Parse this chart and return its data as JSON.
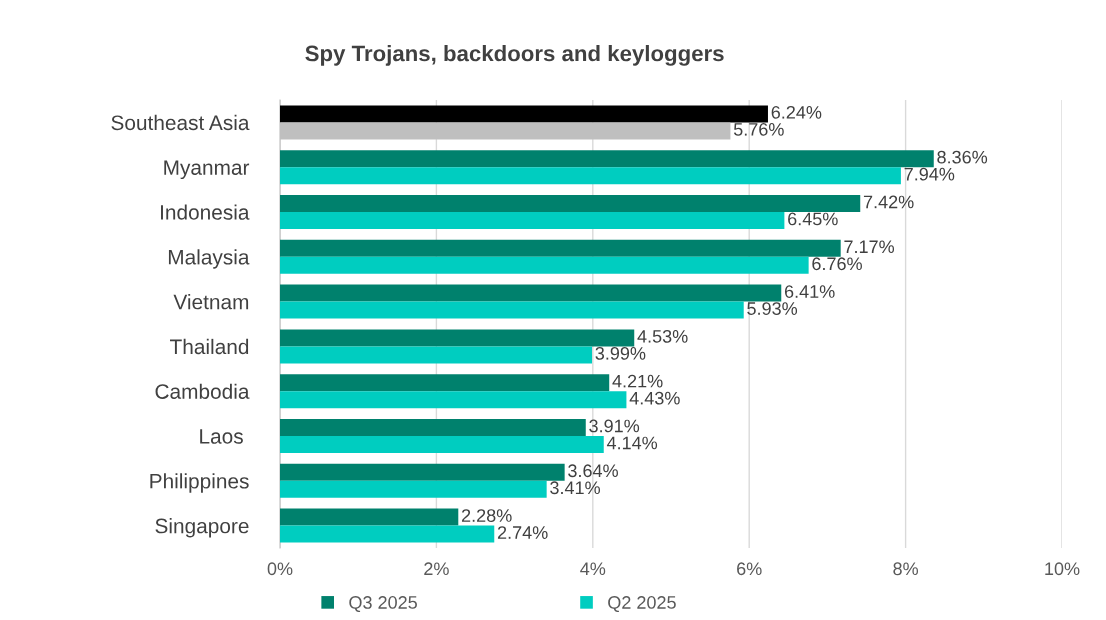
{
  "chart_data": {
    "type": "bar",
    "orientation": "horizontal",
    "title": "Spy Trojans, backdoors and keyloggers",
    "categories": [
      "Southeast Asia",
      "Myanmar",
      "Indonesia",
      "Malaysia",
      "Vietnam",
      "Thailand",
      "Cambodia",
      "Laos ",
      "Philippines",
      "Singapore"
    ],
    "series": [
      {
        "name": "Q3 2025",
        "color": "#00816d",
        "colors": [
          "#000000",
          "#00816d",
          "#00816d",
          "#00816d",
          "#00816d",
          "#00816d",
          "#00816d",
          "#00816d",
          "#00816d",
          "#00816d"
        ],
        "values": [
          6.24,
          8.36,
          7.42,
          7.17,
          6.41,
          4.53,
          4.21,
          3.91,
          3.64,
          2.28
        ],
        "value_labels": [
          "6.24%",
          "8.36%",
          "7.42%",
          "7.17%",
          "6.41%",
          "4.53%",
          "4.21%",
          "3.91%",
          "3.64%",
          "2.28%"
        ]
      },
      {
        "name": "Q2 2025",
        "color": "#00cdc0",
        "colors": [
          "#bfbfbf",
          "#00cdc0",
          "#00cdc0",
          "#00cdc0",
          "#00cdc0",
          "#00cdc0",
          "#00cdc0",
          "#00cdc0",
          "#00cdc0",
          "#00cdc0"
        ],
        "values": [
          5.76,
          7.94,
          6.45,
          6.76,
          5.93,
          3.99,
          4.43,
          4.14,
          3.41,
          2.74
        ],
        "value_labels": [
          "5.76%",
          "7.94%",
          "6.45%",
          "6.76%",
          "5.93%",
          "3.99%",
          "4.43%",
          "4.14%",
          "3.41%",
          "2.74%"
        ]
      }
    ],
    "xlim": [
      0,
      10
    ],
    "xticks": [
      {
        "value": 0,
        "label": "0%"
      },
      {
        "value": 2,
        "label": "2%"
      },
      {
        "value": 4,
        "label": "4%"
      },
      {
        "value": 6,
        "label": "6%"
      },
      {
        "value": 8,
        "label": "8%"
      },
      {
        "value": 10,
        "label": "10%"
      }
    ],
    "grid": "x",
    "legend": "bottom"
  }
}
